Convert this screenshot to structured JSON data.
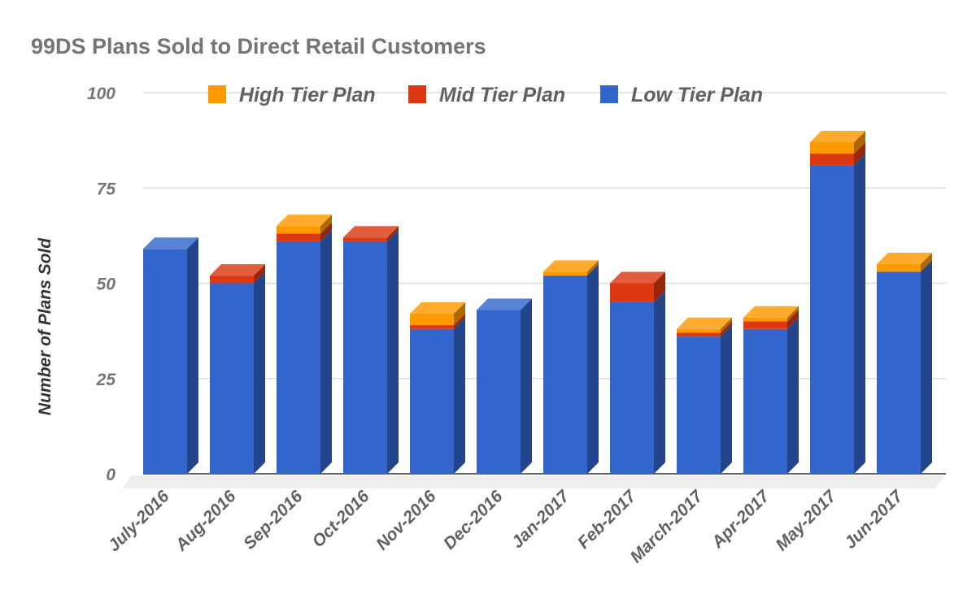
{
  "chart_data": {
    "type": "bar",
    "stacked": true,
    "style_3d": true,
    "title": "99DS Plans Sold to Direct Retail Customers",
    "xlabel": "",
    "ylabel": "Number of Plans Sold",
    "ylim": [
      0,
      100
    ],
    "yticks": [
      0,
      25,
      50,
      75,
      100
    ],
    "grid": true,
    "legend_position": "top",
    "categories": [
      "July-2016",
      "Aug-2016",
      "Sep-2016",
      "Oct-2016",
      "Nov-2016",
      "Dec-2016",
      "Jan-2017",
      "Feb-2017",
      "March-2017",
      "Apr-2017",
      "May-2017",
      "Jun-2017"
    ],
    "series": [
      {
        "name": "Low Tier Plan",
        "color": "#3366cc",
        "values": [
          59,
          50,
          61,
          61,
          38,
          43,
          52,
          45,
          36,
          38,
          81,
          53
        ]
      },
      {
        "name": "Mid Tier Plan",
        "color": "#dc3912",
        "values": [
          0,
          2,
          2,
          1,
          1,
          0,
          0,
          5,
          1,
          2,
          3,
          0
        ]
      },
      {
        "name": "High Tier Plan",
        "color": "#ff9900",
        "values": [
          0,
          0,
          2,
          0,
          3,
          0,
          1,
          0,
          1,
          1,
          3,
          2
        ]
      }
    ],
    "legend_order": [
      "High Tier Plan",
      "Mid Tier Plan",
      "Low Tier Plan"
    ]
  }
}
